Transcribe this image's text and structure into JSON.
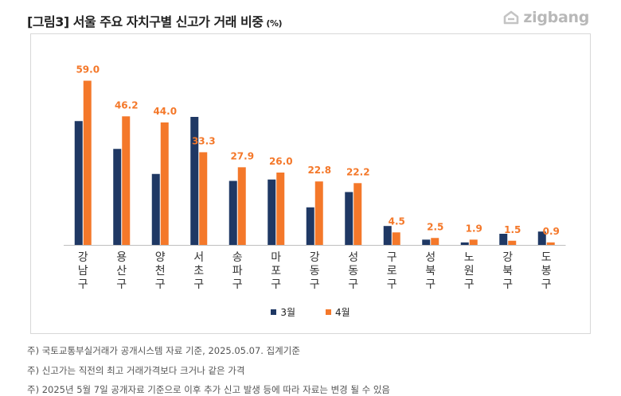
{
  "title": "[그림3] 서울 주요 자치구별 신고가 거래 비중",
  "title_unit": "(%)",
  "logo_text": "zigbang",
  "logo_icon": "zigbang-logo-icon",
  "colors": {
    "march": "#1f3864",
    "april": "#f4782a",
    "label": "#f4782a",
    "axis": "#bfbfbf"
  },
  "chart_data": {
    "type": "bar",
    "categories": [
      "강남구",
      "용산구",
      "양천구",
      "서초구",
      "송파구",
      "마포구",
      "강동구",
      "성동구",
      "구로구",
      "성북구",
      "노원구",
      "강북구",
      "도봉구"
    ],
    "series": [
      {
        "name": "3월",
        "values": [
          44.5,
          34.5,
          25.5,
          46.0,
          23.0,
          23.5,
          13.5,
          19.0,
          6.8,
          1.9,
          0.9,
          4.0,
          4.8
        ]
      },
      {
        "name": "4월",
        "values": [
          59.0,
          46.2,
          44.0,
          33.3,
          27.9,
          26.0,
          22.8,
          22.2,
          4.5,
          2.5,
          1.9,
          1.5,
          0.9
        ]
      }
    ],
    "data_labels": [
      "59.0",
      "46.2",
      "44.0",
      "33.3",
      "27.9",
      "26.0",
      "22.8",
      "22.2",
      "4.5",
      "2.5",
      "1.9",
      "1.5",
      "0.9"
    ],
    "ylim": [
      0,
      70
    ],
    "grid": false,
    "legend_position": "bottom"
  },
  "notes": [
    "주) 국토교통부실거래가 공개시스템 자료 기준, 2025.05.07. 집계기준",
    "주) 신고가는 직전의 최고 거래가격보다 크거나 같은 가격",
    "주) 2025년 5월 7일 공개자료 기준으로 이후 추가 신고 발생 등에 따라 자료는 변경 될 수 있음"
  ]
}
